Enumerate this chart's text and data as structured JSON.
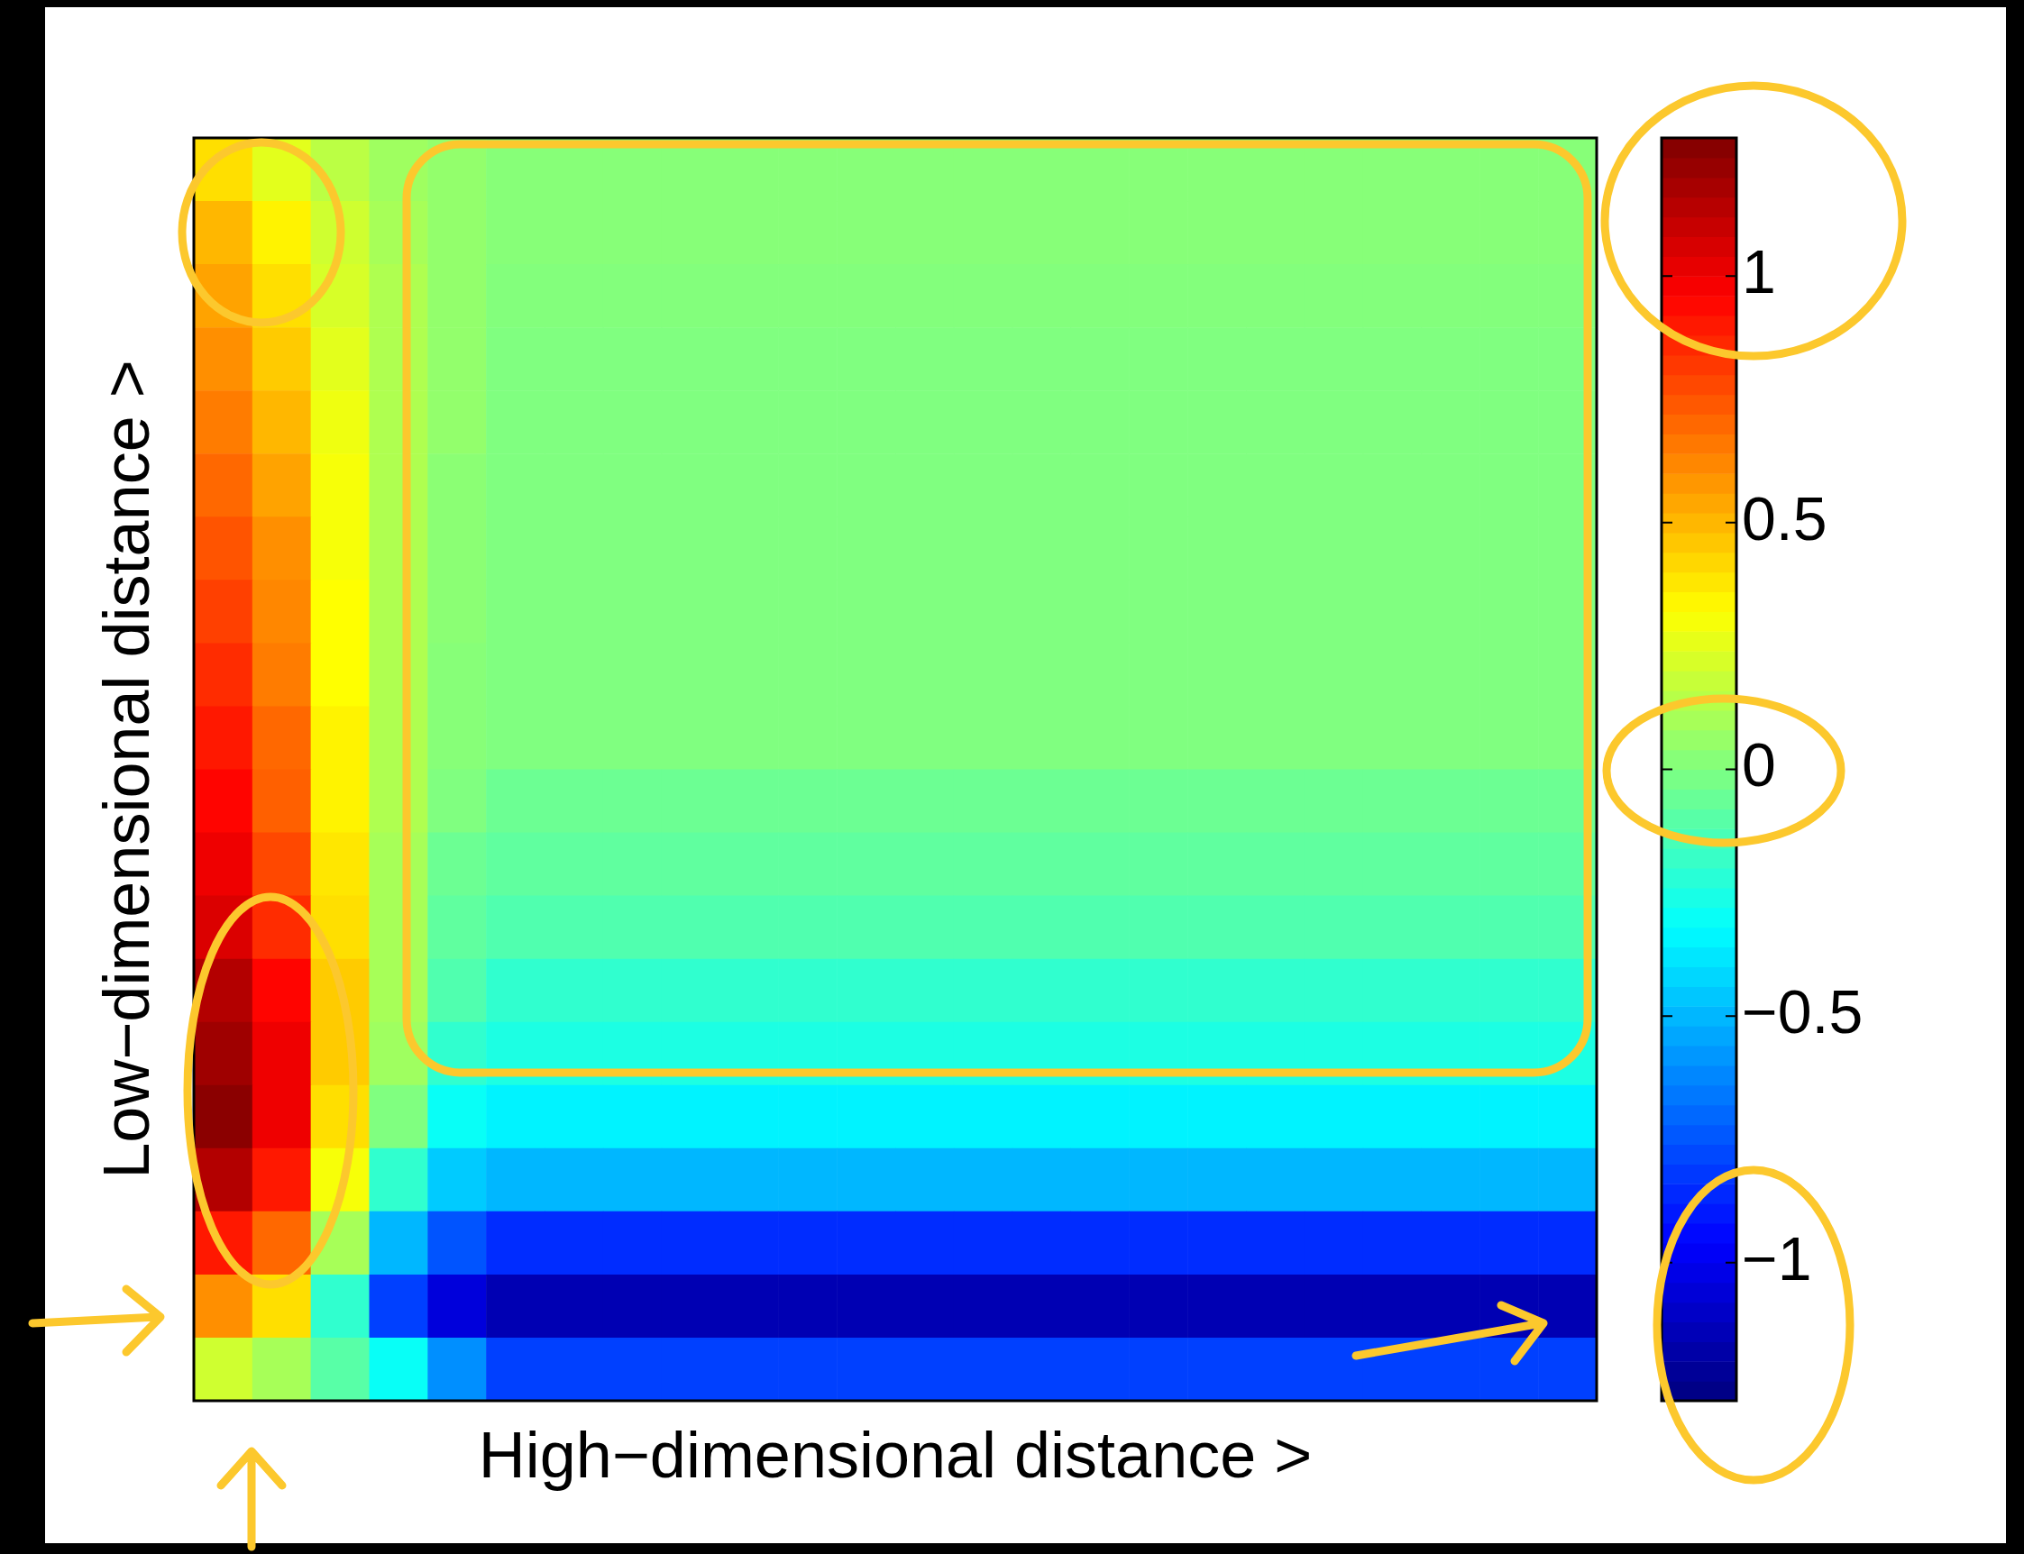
{
  "chart_data": {
    "type": "heatmap",
    "xlabel": "High−dimensional distance >",
    "ylabel": "Low−dimensional distance >",
    "categories": [
      null,
      null,
      null,
      null,
      null,
      null,
      null,
      null,
      null,
      null,
      null,
      null,
      null,
      null,
      null,
      null,
      null,
      null,
      null,
      null,
      null,
      null,
      null,
      null
    ],
    "y_categories": [
      null,
      null,
      null,
      null,
      null,
      null,
      null,
      null,
      null,
      null,
      null,
      null,
      null,
      null,
      null,
      null,
      null,
      null,
      null,
      null
    ],
    "cells": [
      [
        0.4,
        0.25,
        0.15,
        0.08,
        0.05,
        0.02,
        0.02,
        0.02,
        0.02,
        0.02,
        0.02,
        0.02,
        0.02,
        0.02,
        0.02,
        0.02,
        0.02,
        0.02,
        0.02,
        0.02,
        0.02,
        0.02,
        0.02,
        0.02
      ],
      [
        0.5,
        0.35,
        0.2,
        0.1,
        0.05,
        0.02,
        0.02,
        0.02,
        0.02,
        0.02,
        0.02,
        0.02,
        0.02,
        0.02,
        0.02,
        0.02,
        0.02,
        0.02,
        0.02,
        0.02,
        0.02,
        0.02,
        0.02,
        0.02
      ],
      [
        0.55,
        0.4,
        0.22,
        0.12,
        0.05,
        0.01,
        0.01,
        0.01,
        0.01,
        0.01,
        0.01,
        0.01,
        0.01,
        0.01,
        0.01,
        0.01,
        0.01,
        0.01,
        0.01,
        0.01,
        0.01,
        0.01,
        0.01,
        0.01
      ],
      [
        0.6,
        0.45,
        0.25,
        0.12,
        0.05,
        0,
        0,
        0,
        0,
        0,
        0,
        0,
        0,
        0,
        0,
        0,
        0,
        0,
        0,
        0,
        0,
        0,
        0,
        0
      ],
      [
        0.65,
        0.5,
        0.28,
        0.12,
        0.05,
        0,
        0,
        0,
        0,
        0,
        0,
        0,
        0,
        0,
        0,
        0,
        0,
        0,
        0,
        0,
        0,
        0,
        0,
        0
      ],
      [
        0.7,
        0.55,
        0.3,
        0.12,
        0.03,
        0,
        0,
        0,
        0,
        0,
        0,
        0,
        0,
        0,
        0,
        0,
        0,
        0,
        0,
        0,
        0,
        0,
        0,
        0
      ],
      [
        0.75,
        0.6,
        0.3,
        0.12,
        0.03,
        0,
        0,
        0,
        0,
        0,
        0,
        0,
        0,
        0,
        0,
        0,
        0,
        0,
        0,
        0,
        0,
        0,
        0,
        0
      ],
      [
        0.8,
        0.62,
        0.32,
        0.12,
        0.03,
        0,
        0,
        0,
        0,
        0,
        0,
        0,
        0,
        0,
        0,
        0,
        0,
        0,
        0,
        0,
        0,
        0,
        0,
        0
      ],
      [
        0.85,
        0.65,
        0.32,
        0.12,
        0.02,
        0,
        0,
        0,
        0,
        0,
        0,
        0,
        0,
        0,
        0,
        0,
        0,
        0,
        0,
        0,
        0,
        0,
        0,
        0
      ],
      [
        0.9,
        0.7,
        0.35,
        0.12,
        0.02,
        0,
        0,
        0,
        0,
        0,
        0,
        0,
        0,
        0,
        0,
        0,
        0,
        0,
        0,
        0,
        0,
        0,
        0,
        0
      ],
      [
        0.95,
        0.72,
        0.35,
        0.12,
        0,
        -0.05,
        -0.05,
        -0.05,
        -0.05,
        -0.05,
        -0.05,
        -0.05,
        -0.05,
        -0.05,
        -0.05,
        -0.05,
        -0.05,
        -0.05,
        -0.05,
        -0.05,
        -0.05,
        -0.05,
        -0.05,
        -0.05
      ],
      [
        1.0,
        0.78,
        0.38,
        0.1,
        -0.05,
        -0.08,
        -0.08,
        -0.08,
        -0.08,
        -0.08,
        -0.08,
        -0.08,
        -0.08,
        -0.08,
        -0.08,
        -0.08,
        -0.08,
        -0.08,
        -0.08,
        -0.08,
        -0.08,
        -0.08,
        -0.08,
        -0.08
      ],
      [
        1.05,
        0.85,
        0.4,
        0.1,
        -0.08,
        -0.12,
        -0.12,
        -0.12,
        -0.12,
        -0.12,
        -0.12,
        -0.12,
        -0.12,
        -0.12,
        -0.12,
        -0.12,
        -0.12,
        -0.12,
        -0.12,
        -0.12,
        -0.12,
        -0.12,
        -0.12,
        -0.12
      ],
      [
        1.15,
        0.95,
        0.45,
        0.1,
        -0.12,
        -0.2,
        -0.2,
        -0.2,
        -0.2,
        -0.2,
        -0.2,
        -0.2,
        -0.2,
        -0.2,
        -0.2,
        -0.2,
        -0.2,
        -0.2,
        -0.2,
        -0.2,
        -0.2,
        -0.2,
        -0.2,
        -0.2
      ],
      [
        1.2,
        1.0,
        0.45,
        0.08,
        -0.2,
        -0.25,
        -0.25,
        -0.25,
        -0.25,
        -0.25,
        -0.25,
        -0.25,
        -0.25,
        -0.25,
        -0.25,
        -0.25,
        -0.25,
        -0.25,
        -0.25,
        -0.25,
        -0.25,
        -0.25,
        -0.25,
        -0.25
      ],
      [
        1.25,
        1.0,
        0.4,
        0,
        -0.3,
        -0.35,
        -0.35,
        -0.35,
        -0.35,
        -0.35,
        -0.35,
        -0.35,
        -0.35,
        -0.35,
        -0.35,
        -0.35,
        -0.35,
        -0.35,
        -0.35,
        -0.35,
        -0.35,
        -0.35,
        -0.35,
        -0.35
      ],
      [
        1.15,
        0.9,
        0.3,
        -0.2,
        -0.45,
        -0.5,
        -0.5,
        -0.5,
        -0.5,
        -0.5,
        -0.5,
        -0.5,
        -0.5,
        -0.5,
        -0.5,
        -0.5,
        -0.5,
        -0.5,
        -0.5,
        -0.5,
        -0.5,
        -0.5,
        -0.5,
        -0.5
      ],
      [
        0.9,
        0.7,
        0.1,
        -0.5,
        -0.75,
        -0.85,
        -0.85,
        -0.85,
        -0.85,
        -0.85,
        -0.85,
        -0.85,
        -0.85,
        -0.85,
        -0.85,
        -0.85,
        -0.85,
        -0.85,
        -0.85,
        -0.85,
        -0.85,
        -0.85,
        -0.85,
        -0.85
      ],
      [
        0.6,
        0.4,
        -0.2,
        -0.8,
        -1.05,
        -1.15,
        -1.15,
        -1.15,
        -1.15,
        -1.15,
        -1.15,
        -1.15,
        -1.15,
        -1.15,
        -1.15,
        -1.15,
        -1.15,
        -1.15,
        -1.15,
        -1.15,
        -1.15,
        -1.15,
        -1.15,
        -1.15
      ],
      [
        0.2,
        0.1,
        -0.1,
        -0.3,
        -0.6,
        -0.8,
        -0.8,
        -0.8,
        -0.8,
        -0.8,
        -0.8,
        -0.8,
        -0.8,
        -0.8,
        -0.8,
        -0.8,
        -0.8,
        -0.8,
        -0.8,
        -0.8,
        -0.8,
        -0.8,
        -0.8,
        -0.8
      ]
    ],
    "clim": [
      -1.28,
      1.28
    ],
    "cticks": [
      {
        "value": -1,
        "label": "−1"
      },
      {
        "value": -0.5,
        "label": "−0.5"
      },
      {
        "value": 0,
        "label": "0"
      },
      {
        "value": 0.5,
        "label": "0.5"
      },
      {
        "value": 1,
        "label": "1"
      }
    ]
  }
}
